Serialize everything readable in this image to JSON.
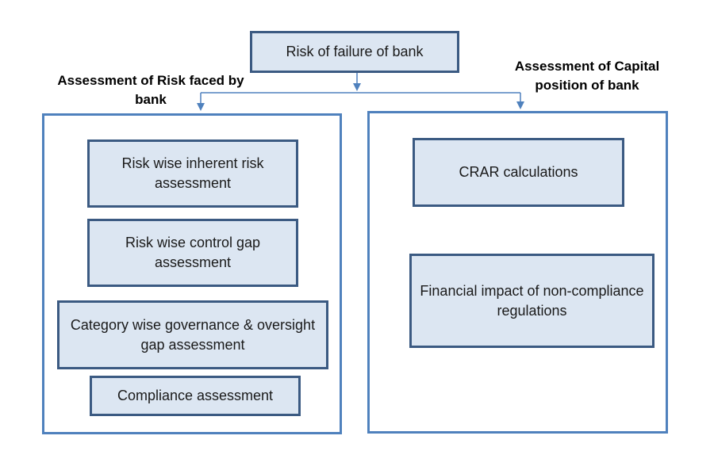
{
  "diagram": {
    "root": {
      "label": "Risk of failure of bank"
    },
    "left_branch": {
      "heading": "Assessment of Risk faced by bank",
      "items": [
        {
          "label": "Risk wise inherent risk assessment"
        },
        {
          "label": "Risk wise control gap assessment"
        },
        {
          "label": "Category wise governance & oversight gap assessment"
        },
        {
          "label": "Compliance assessment"
        }
      ]
    },
    "right_branch": {
      "heading": "Assessment of Capital position of bank",
      "items": [
        {
          "label": "CRAR calculations"
        },
        {
          "label": "Financial impact of non-compliance regulations"
        }
      ]
    }
  },
  "colors": {
    "box_fill": "#dce6f2",
    "box_border": "#3b5a82",
    "container_border": "#4f81bd",
    "connector": "#4f81bd"
  }
}
